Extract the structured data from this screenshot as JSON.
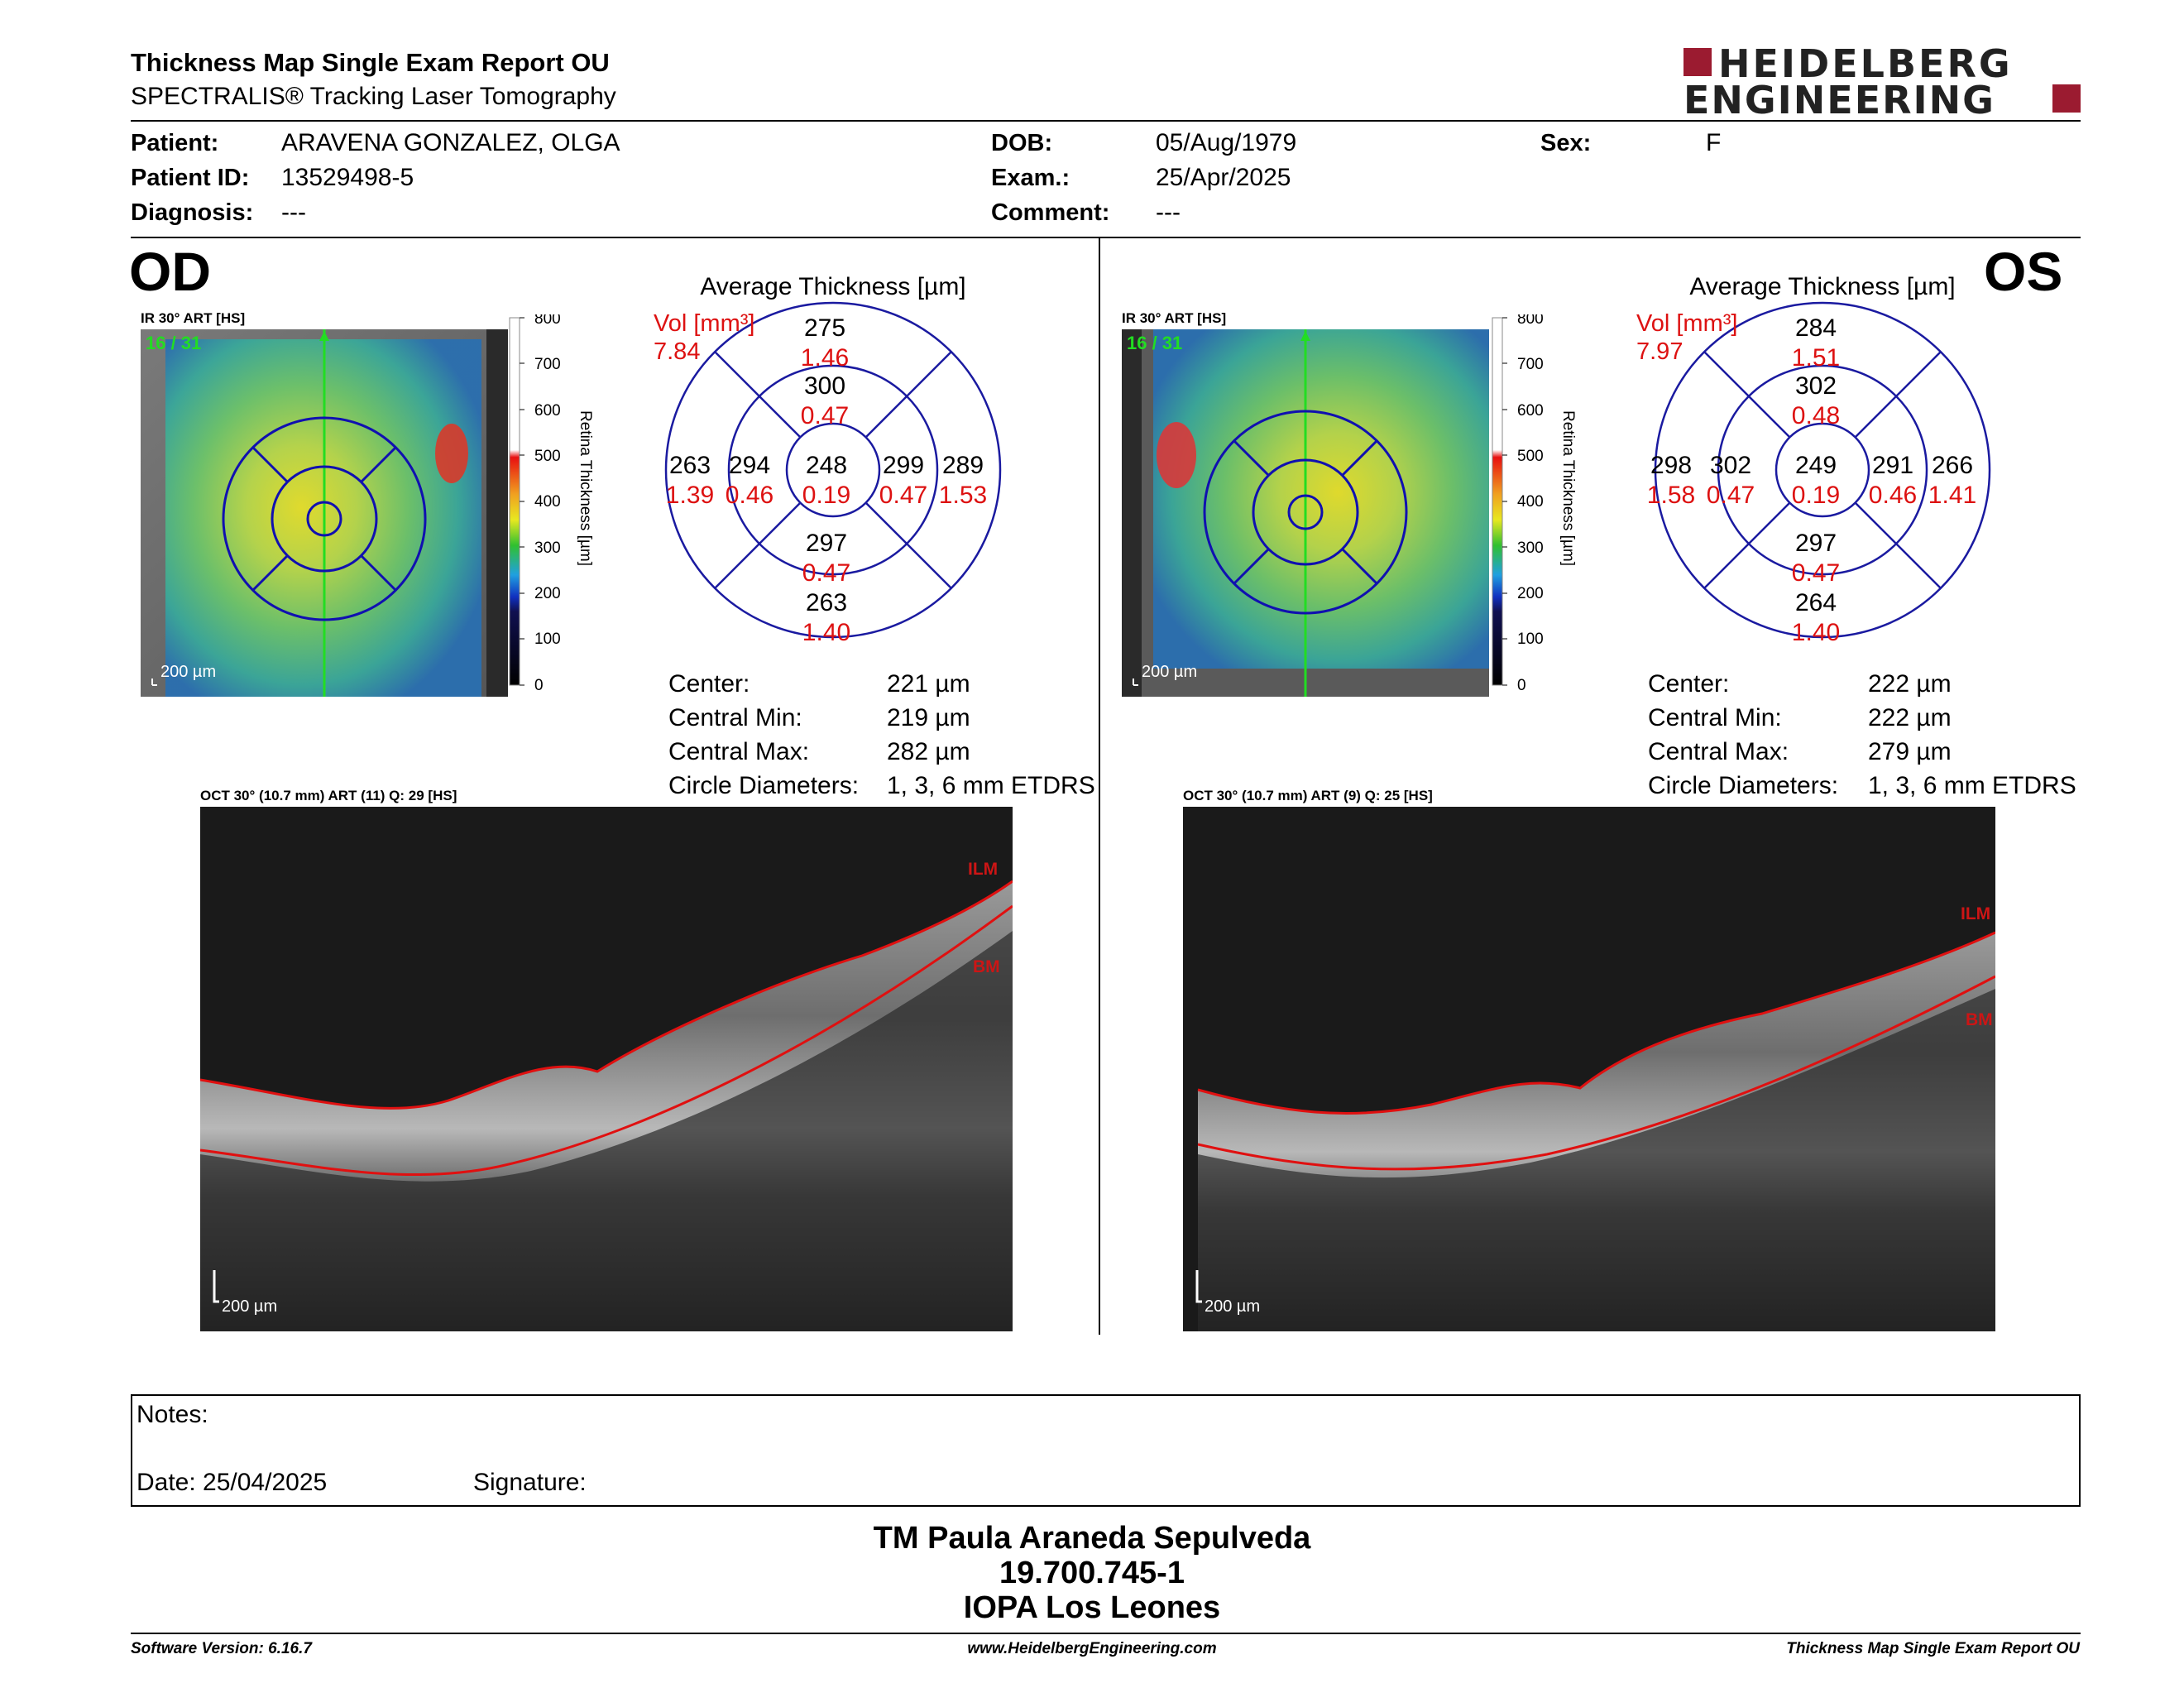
{
  "header": {
    "title": "Thickness Map Single Exam Report OU",
    "subtitle": "SPECTRALIS® Tracking Laser Tomography",
    "logo_line1": "HEIDELBERG",
    "logo_line2": "ENGINEERING",
    "brand_color": "#9b1b30"
  },
  "patient": {
    "patient_label": "Patient:",
    "patient_value": "ARAVENA GONZALEZ, OLGA",
    "id_label": "Patient ID:",
    "id_value": "13529498-5",
    "diagnosis_label": "Diagnosis:",
    "diagnosis_value": "---",
    "dob_label": "DOB:",
    "dob_value": "05/Aug/1979",
    "exam_label": "Exam.:",
    "exam_value": "25/Apr/2025",
    "comment_label": "Comment:",
    "comment_value": "---",
    "sex_label": "Sex:",
    "sex_value": "F"
  },
  "od": {
    "eye_label": "OD",
    "ir_label": "IR 30° ART [HS]",
    "scan_counter": "16 / 31",
    "ir_scale": "200 µm",
    "avg_title": "Average Thickness [µm]",
    "vol_label": "Vol [mm³]",
    "vol_value": "7.84",
    "sectors": {
      "top_outer": [
        "275",
        "1.46"
      ],
      "top_inner": [
        "300",
        "0.47"
      ],
      "left_outer": [
        "263",
        "1.39"
      ],
      "left_inner": [
        "294",
        "0.46"
      ],
      "center": [
        "248",
        "0.19"
      ],
      "right_inner": [
        "299",
        "0.47"
      ],
      "right_outer": [
        "289",
        "1.53"
      ],
      "bottom_inner": [
        "297",
        "0.47"
      ],
      "bottom_outer": [
        "263",
        "1.40"
      ]
    },
    "stats": {
      "center_label": "Center:",
      "center_value": "221 µm",
      "min_label": "Central Min:",
      "min_value": "219 µm",
      "max_label": "Central Max:",
      "max_value": "282 µm",
      "circle_label": "Circle Diameters:",
      "circle_value": "1, 3, 6 mm ETDRS"
    },
    "oct_label": "OCT 30° (10.7 mm) ART (11) Q: 29 [HS]",
    "ilm": "ILM",
    "bm": "BM",
    "oct_scale": "200 µm"
  },
  "os": {
    "eye_label": "OS",
    "ir_label": "IR 30° ART [HS]",
    "scan_counter": "16 / 31",
    "ir_scale": "200 µm",
    "avg_title": "Average Thickness [µm]",
    "vol_label": "Vol [mm³]",
    "vol_value": "7.97",
    "sectors": {
      "top_outer": [
        "284",
        "1.51"
      ],
      "top_inner": [
        "302",
        "0.48"
      ],
      "left_outer": [
        "298",
        "1.58"
      ],
      "left_inner": [
        "302",
        "0.47"
      ],
      "center": [
        "249",
        "0.19"
      ],
      "right_inner": [
        "291",
        "0.46"
      ],
      "right_outer": [
        "266",
        "1.41"
      ],
      "bottom_inner": [
        "297",
        "0.47"
      ],
      "bottom_outer": [
        "264",
        "1.40"
      ]
    },
    "stats": {
      "center_label": "Center:",
      "center_value": "222 µm",
      "min_label": "Central Min:",
      "min_value": "222 µm",
      "max_label": "Central Max:",
      "max_value": "279 µm",
      "circle_label": "Circle Diameters:",
      "circle_value": "1, 3, 6 mm ETDRS"
    },
    "oct_label": "OCT 30° (10.7 mm) ART (9) Q: 25 [HS]",
    "ilm": "ILM",
    "bm": "BM",
    "oct_scale": "200 µm"
  },
  "colorbar": {
    "ticks": [
      "800",
      "700",
      "600",
      "500",
      "400",
      "300",
      "200",
      "100",
      "0"
    ],
    "title": "Retina Thickness [µm]"
  },
  "notes": {
    "notes_label": "Notes:",
    "date_label": "Date: 25/04/2025",
    "signature_label": "Signature:"
  },
  "signature": {
    "line1": "TM Paula Araneda Sepulveda",
    "line2": "19.700.745-1",
    "line3": "IOPA Los Leones"
  },
  "footer": {
    "software": "Software Version: 6.16.7",
    "website": "www.HeidelbergEngineering.com",
    "report_name": "Thickness Map Single Exam Report OU"
  }
}
